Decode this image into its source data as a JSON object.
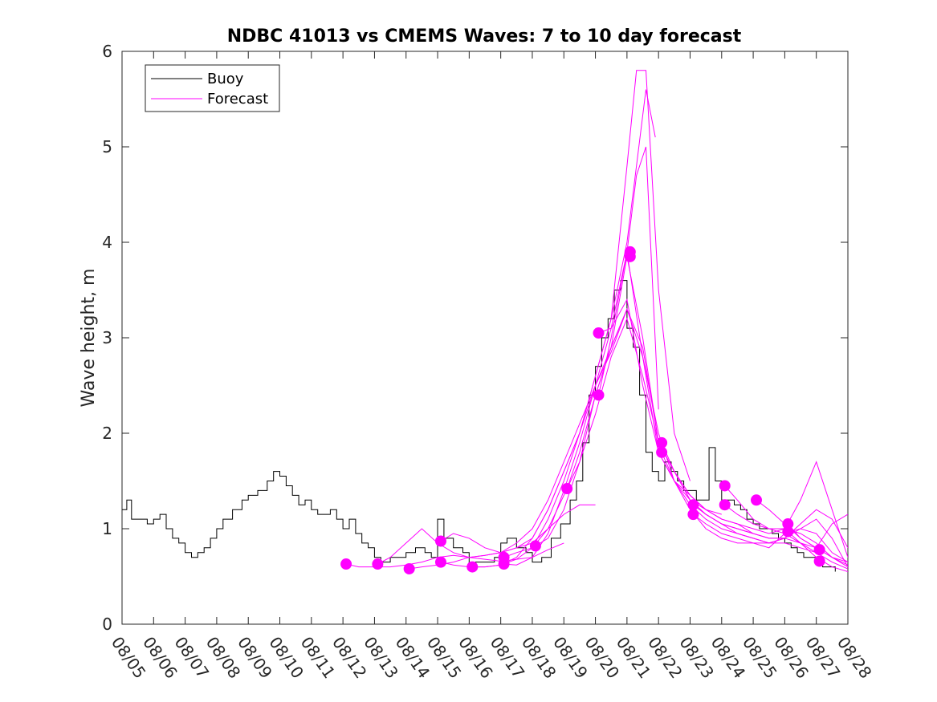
{
  "chart_data": {
    "type": "line",
    "title": "NDBC 41013 vs CMEMS Waves: 7 to 10 day forecast",
    "xlabel": "",
    "ylabel": "Wave height, m",
    "ylim": [
      0,
      6
    ],
    "xlim": [
      0,
      23
    ],
    "yticks": [
      "0",
      "1",
      "2",
      "3",
      "4",
      "5",
      "6"
    ],
    "xtick_labels": [
      "08/05",
      "08/06",
      "08/07",
      "08/08",
      "08/09",
      "08/10",
      "08/11",
      "08/12",
      "08/13",
      "08/14",
      "08/15",
      "08/16",
      "08/17",
      "08/18",
      "08/19",
      "08/20",
      "08/21",
      "08/22",
      "08/23",
      "08/24",
      "08/25",
      "08/26",
      "08/27",
      "08/28"
    ],
    "legend": {
      "position": "top-left",
      "entries": [
        "Buoy",
        "Forecast"
      ]
    },
    "colors": {
      "buoy": "#000000",
      "forecast": "#ff00ff"
    },
    "buoy": {
      "name": "Buoy",
      "x": [
        0,
        0.15,
        0.3,
        0.5,
        0.8,
        1.0,
        1.2,
        1.4,
        1.6,
        1.8,
        2.0,
        2.2,
        2.4,
        2.6,
        2.8,
        3.0,
        3.2,
        3.5,
        3.8,
        4.0,
        4.3,
        4.6,
        4.8,
        5.0,
        5.2,
        5.4,
        5.6,
        5.8,
        6.0,
        6.2,
        6.4,
        6.6,
        6.8,
        7.0,
        7.2,
        7.4,
        7.6,
        7.8,
        8.0,
        8.2,
        8.5,
        8.8,
        9.0,
        9.3,
        9.6,
        9.8,
        10.0,
        10.2,
        10.5,
        10.8,
        11.0,
        11.2,
        11.5,
        11.8,
        12.0,
        12.2,
        12.5,
        12.8,
        13.0,
        13.3,
        13.6,
        13.9,
        14.2,
        14.4,
        14.6,
        14.8,
        15.0,
        15.2,
        15.4,
        15.6,
        15.8,
        16.0,
        16.2,
        16.4,
        16.6,
        16.8,
        17.0,
        17.2,
        17.4,
        17.6,
        17.8,
        18.0,
        18.2,
        18.4,
        18.6,
        18.8,
        19.0,
        19.2,
        19.4,
        19.6,
        19.8,
        20.0,
        20.2,
        20.4,
        20.6,
        20.8,
        21.0,
        21.2,
        21.4,
        21.6,
        21.8,
        22.0,
        22.2,
        22.4,
        22.6
      ],
      "y": [
        1.2,
        1.3,
        1.1,
        1.1,
        1.05,
        1.1,
        1.15,
        1.0,
        0.9,
        0.85,
        0.75,
        0.7,
        0.75,
        0.8,
        0.9,
        1.0,
        1.1,
        1.2,
        1.3,
        1.35,
        1.4,
        1.5,
        1.6,
        1.55,
        1.45,
        1.35,
        1.25,
        1.3,
        1.2,
        1.15,
        1.15,
        1.2,
        1.1,
        1.0,
        1.1,
        0.95,
        0.85,
        0.8,
        0.7,
        0.65,
        0.7,
        0.7,
        0.75,
        0.8,
        0.75,
        0.7,
        1.1,
        0.9,
        0.8,
        0.75,
        0.6,
        0.65,
        0.65,
        0.7,
        0.85,
        0.9,
        0.8,
        0.75,
        0.65,
        0.7,
        0.9,
        1.05,
        1.3,
        1.5,
        1.9,
        2.4,
        2.7,
        3.0,
        3.2,
        3.5,
        3.6,
        3.1,
        2.9,
        2.4,
        1.8,
        1.6,
        1.5,
        1.7,
        1.6,
        1.5,
        1.4,
        1.4,
        1.3,
        1.3,
        1.85,
        1.5,
        1.3,
        1.3,
        1.25,
        1.2,
        1.1,
        1.05,
        1.0,
        1.0,
        0.95,
        0.9,
        0.85,
        0.8,
        0.75,
        0.7,
        0.7,
        0.65,
        0.6,
        0.6,
        0.55
      ]
    },
    "forecast": [
      {
        "name": "Forecast",
        "x": [
          7.1,
          7.5,
          8.0,
          8.5,
          9.0,
          9.5,
          10.0,
          10.5,
          11.0,
          11.5,
          12.0,
          12.5,
          13.0,
          13.5,
          14.0
        ],
        "y": [
          0.63,
          0.6,
          0.6,
          0.6,
          0.62,
          0.65,
          0.7,
          0.72,
          0.7,
          0.68,
          0.66,
          0.68,
          0.7,
          0.78,
          0.85
        ]
      },
      {
        "name": "Forecast",
        "x": [
          8.1,
          8.5,
          9.0,
          9.5,
          10.0,
          10.5,
          11.0,
          11.5,
          12.0,
          12.5,
          13.0,
          13.5,
          14.0,
          14.5,
          15.0
        ],
        "y": [
          0.63,
          0.7,
          0.85,
          1.0,
          0.85,
          0.75,
          0.7,
          0.72,
          0.75,
          0.8,
          0.85,
          1.0,
          1.15,
          1.25,
          1.25
        ]
      },
      {
        "name": "Forecast",
        "x": [
          9.1,
          9.5,
          10.0,
          10.5,
          11.0,
          11.5,
          12.0,
          12.5,
          13.0,
          13.5,
          14.0,
          14.5,
          15.0,
          15.5,
          16.0
        ],
        "y": [
          0.58,
          0.6,
          0.62,
          0.65,
          0.7,
          0.72,
          0.75,
          0.85,
          1.0,
          1.3,
          1.7,
          2.1,
          2.5,
          2.85,
          3.3
        ]
      },
      {
        "name": "Forecast",
        "x": [
          10.1,
          10.5,
          11.0,
          11.5,
          12.0,
          12.5,
          13.0,
          13.5,
          14.0,
          14.5,
          15.0,
          15.5,
          16.0,
          16.3,
          16.6,
          16.9
        ],
        "y": [
          0.87,
          0.95,
          0.9,
          0.8,
          0.75,
          0.8,
          0.9,
          1.2,
          1.6,
          2.0,
          2.6,
          3.2,
          4.0,
          4.8,
          5.6,
          5.1
        ]
      },
      {
        "name": "Forecast",
        "x": [
          10.1,
          10.5,
          11.0,
          11.5,
          12.0,
          12.5,
          13.0,
          13.5,
          14.0,
          14.5,
          15.0,
          15.5,
          16.0,
          16.3,
          16.6,
          17.0
        ],
        "y": [
          0.65,
          0.62,
          0.6,
          0.6,
          0.62,
          0.7,
          0.9,
          1.2,
          1.6,
          2.0,
          2.5,
          3.1,
          3.9,
          4.7,
          5.0,
          2.25
        ]
      },
      {
        "name": "Forecast",
        "x": [
          11.1,
          11.5,
          12.0,
          12.5,
          13.0,
          13.5,
          14.0,
          14.5,
          15.0,
          15.5,
          16.0,
          16.3,
          16.6,
          17.0,
          17.5,
          18.0
        ],
        "y": [
          0.6,
          0.6,
          0.62,
          0.68,
          0.8,
          1.1,
          1.5,
          2.0,
          2.6,
          3.2,
          4.8,
          5.8,
          5.8,
          3.5,
          2.0,
          1.5
        ]
      },
      {
        "name": "Forecast",
        "x": [
          12.1,
          12.5,
          13.0,
          13.5,
          14.0,
          14.5,
          15.0,
          15.5,
          16.0,
          16.5,
          17.0,
          17.5,
          18.0,
          18.5,
          19.0
        ],
        "y": [
          0.63,
          0.62,
          0.7,
          0.95,
          1.4,
          1.9,
          2.5,
          2.9,
          3.3,
          2.8,
          2.0,
          1.5,
          1.35,
          1.2,
          1.1
        ]
      },
      {
        "name": "Forecast",
        "x": [
          12.1,
          12.5,
          13.0,
          13.5,
          14.0,
          14.5,
          15.0,
          15.5,
          16.0,
          16.5,
          17.0,
          17.5,
          18.0,
          18.5,
          19.0
        ],
        "y": [
          0.7,
          0.75,
          0.8,
          1.0,
          1.35,
          1.7,
          2.2,
          2.8,
          3.2,
          2.6,
          1.9,
          1.6,
          1.35,
          1.2,
          1.15
        ]
      },
      {
        "name": "Forecast",
        "x": [
          13.1,
          13.5,
          14.0,
          14.5,
          15.0,
          15.5,
          16.0,
          16.5,
          17.0,
          17.5,
          18.0,
          18.5,
          19.0,
          19.5,
          20.0
        ],
        "y": [
          0.82,
          0.9,
          1.2,
          1.7,
          2.4,
          2.9,
          3.3,
          2.9,
          1.9,
          1.6,
          1.3,
          1.15,
          1.05,
          1.0,
          0.95
        ]
      },
      {
        "name": "Forecast",
        "x": [
          14.1,
          14.5,
          15.0,
          15.5,
          16.0,
          16.5,
          17.0,
          17.5,
          18.0,
          18.5,
          19.0,
          19.5,
          20.0,
          20.5,
          21.0
        ],
        "y": [
          1.42,
          1.8,
          2.4,
          2.9,
          3.85,
          3.0,
          1.9,
          1.6,
          1.3,
          1.2,
          1.1,
          1.05,
          0.95,
          0.9,
          0.9
        ]
      },
      {
        "name": "Forecast",
        "x": [
          15.1,
          15.5,
          16.0,
          16.5,
          17.0,
          17.5,
          18.0,
          18.5,
          19.0,
          19.5,
          20.0,
          20.5,
          21.0,
          21.5,
          22.0
        ],
        "y": [
          2.4,
          3.0,
          3.9,
          2.8,
          1.8,
          1.5,
          1.25,
          1.1,
          1.0,
          0.95,
          0.9,
          0.85,
          0.85,
          0.8,
          0.75
        ]
      },
      {
        "name": "Forecast",
        "x": [
          15.1,
          15.5,
          16.0,
          16.5,
          17.0,
          17.5,
          18.0,
          18.5,
          19.0,
          19.5,
          20.0,
          20.5,
          21.0,
          21.5,
          22.0,
          22.5,
          23.0
        ],
        "y": [
          3.05,
          3.1,
          3.4,
          2.5,
          1.8,
          1.5,
          1.2,
          1.0,
          0.9,
          0.85,
          0.85,
          0.8,
          0.95,
          1.0,
          1.1,
          0.9,
          0.6
        ]
      },
      {
        "name": "Forecast",
        "x": [
          17.1,
          17.5,
          18.0,
          18.5,
          19.0,
          19.5,
          20.0,
          20.5,
          21.0,
          21.5,
          22.0,
          22.5,
          23.0
        ],
        "y": [
          1.9,
          1.6,
          1.35,
          1.2,
          1.1,
          1.05,
          1.0,
          0.95,
          1.0,
          1.3,
          1.7,
          1.2,
          0.7
        ]
      },
      {
        "name": "Forecast",
        "x": [
          17.1,
          17.5,
          18.0,
          18.5,
          19.0,
          19.5,
          20.0,
          20.5,
          21.0,
          21.5,
          22.0,
          22.5,
          23.0
        ],
        "y": [
          1.8,
          1.5,
          1.3,
          1.15,
          1.05,
          0.95,
          0.9,
          0.85,
          0.9,
          1.05,
          1.2,
          1.1,
          0.8
        ]
      },
      {
        "name": "Forecast",
        "x": [
          18.1,
          18.5,
          19.0,
          19.5,
          20.0,
          20.5,
          21.0,
          21.5,
          22.0,
          22.5,
          23.0
        ],
        "y": [
          1.25,
          1.15,
          1.05,
          1.0,
          0.95,
          0.9,
          0.9,
          0.85,
          0.8,
          1.05,
          1.15
        ]
      },
      {
        "name": "Forecast",
        "x": [
          18.1,
          18.5,
          19.0,
          19.5,
          20.0,
          20.5,
          21.0,
          21.5,
          22.0,
          22.5,
          23.0
        ],
        "y": [
          1.15,
          1.05,
          0.95,
          0.9,
          0.85,
          0.85,
          0.9,
          1.0,
          0.95,
          0.75,
          0.65
        ]
      },
      {
        "name": "Forecast",
        "x": [
          19.1,
          19.5,
          20.0,
          20.5,
          21.0,
          21.5,
          22.0,
          22.5,
          23.0
        ],
        "y": [
          1.45,
          1.3,
          1.1,
          1.0,
          1.0,
          0.95,
          0.85,
          0.7,
          0.6
        ]
      },
      {
        "name": "Forecast",
        "x": [
          19.1,
          19.5,
          20.0,
          20.5,
          21.0,
          21.5,
          22.0,
          22.5,
          23.0
        ],
        "y": [
          1.25,
          1.15,
          1.05,
          1.0,
          0.95,
          0.85,
          0.75,
          0.65,
          0.58
        ]
      },
      {
        "name": "Forecast",
        "x": [
          20.1,
          20.5,
          21.0,
          21.5,
          22.0,
          22.5,
          23.0
        ],
        "y": [
          1.3,
          1.2,
          1.05,
          0.9,
          0.8,
          0.7,
          0.65
        ]
      },
      {
        "name": "Forecast",
        "x": [
          21.1,
          21.5,
          22.0,
          22.5,
          23.0
        ],
        "y": [
          1.05,
          0.9,
          0.8,
          0.7,
          0.62
        ]
      },
      {
        "name": "Forecast",
        "x": [
          21.1,
          21.5,
          22.0,
          22.5,
          23.0
        ],
        "y": [
          0.97,
          0.85,
          0.7,
          0.6,
          0.55
        ]
      }
    ],
    "forecast_start_points": [
      {
        "x": 7.1,
        "y": 0.63
      },
      {
        "x": 8.1,
        "y": 0.63
      },
      {
        "x": 9.1,
        "y": 0.58
      },
      {
        "x": 10.1,
        "y": 0.87
      },
      {
        "x": 10.1,
        "y": 0.65
      },
      {
        "x": 11.1,
        "y": 0.6
      },
      {
        "x": 12.1,
        "y": 0.63
      },
      {
        "x": 12.1,
        "y": 0.7
      },
      {
        "x": 13.1,
        "y": 0.82
      },
      {
        "x": 14.1,
        "y": 1.42
      },
      {
        "x": 15.1,
        "y": 2.4
      },
      {
        "x": 15.1,
        "y": 3.05
      },
      {
        "x": 16.1,
        "y": 3.9
      },
      {
        "x": 16.1,
        "y": 3.85
      },
      {
        "x": 17.1,
        "y": 1.9
      },
      {
        "x": 17.1,
        "y": 1.8
      },
      {
        "x": 18.1,
        "y": 1.25
      },
      {
        "x": 18.1,
        "y": 1.15
      },
      {
        "x": 19.1,
        "y": 1.45
      },
      {
        "x": 19.1,
        "y": 1.25
      },
      {
        "x": 20.1,
        "y": 1.3
      },
      {
        "x": 21.1,
        "y": 1.05
      },
      {
        "x": 21.1,
        "y": 0.97
      },
      {
        "x": 22.1,
        "y": 0.78
      },
      {
        "x": 22.1,
        "y": 0.66
      }
    ]
  }
}
